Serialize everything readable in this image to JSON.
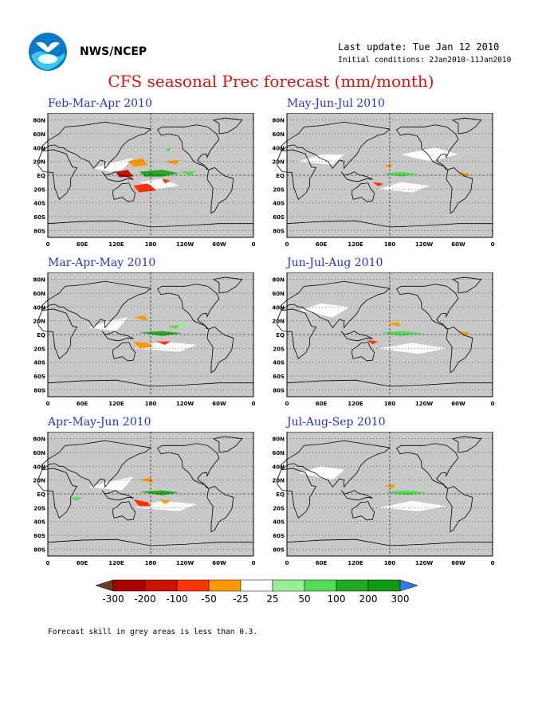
{
  "header": {
    "org": "NWS/NCEP",
    "last_update": "Last update: Tue Jan 12 2010",
    "initial_conditions": "Initial conditions: 2Jan2010-11Jan2010"
  },
  "title": "CFS seasonal Prec forecast (mm/month)",
  "panels": [
    {
      "title": "Feb-Mar-Apr 2010"
    },
    {
      "title": "May-Jun-Jul 2010"
    },
    {
      "title": "Mar-Apr-May 2010"
    },
    {
      "title": "Jun-Jul-Aug 2010"
    },
    {
      "title": "Apr-May-Jun 2010"
    },
    {
      "title": "Jul-Aug-Sep 2010"
    }
  ],
  "axes": {
    "lat_labels": [
      "80N",
      "60N",
      "40N",
      "20N",
      "EQ",
      "20S",
      "40S",
      "60S",
      "80S"
    ],
    "lon_labels": [
      "0",
      "60E",
      "120E",
      "180",
      "120W",
      "60W",
      "0"
    ]
  },
  "colorbar": {
    "labels": [
      "-300",
      "-200",
      "-100",
      "-50",
      "-25",
      "25",
      "50",
      "100",
      "200",
      "300"
    ],
    "colors": [
      "#6b3a2a",
      "#a80000",
      "#cc1100",
      "#ff3300",
      "#ff9900",
      "#ffffff",
      "#99ee99",
      "#55dd55",
      "#22aa22",
      "#119911",
      "#3377ee"
    ]
  },
  "colors": {
    "grey_area": "#c8c8c8",
    "title": "#e01010",
    "panel_title": "#2233cc"
  },
  "note": "Forecast skill in grey areas is less than 0.3."
}
